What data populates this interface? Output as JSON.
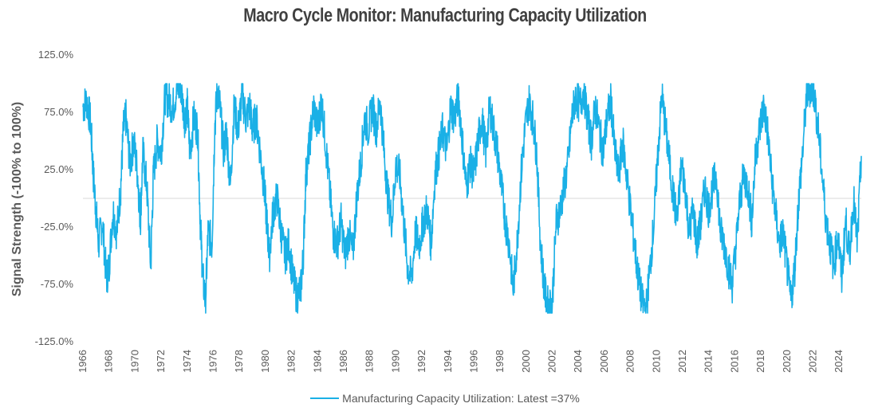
{
  "chart_data": {
    "type": "line",
    "title": "Macro Cycle Monitor: Manufacturing Capacity Utilization",
    "ylabel": "Signal Strength (-100% to 100%)",
    "xlabel": "",
    "ylim": [
      -125,
      125
    ],
    "yticks": [
      "125.0%",
      "75.0%",
      "25.0%",
      "-25.0%",
      "-75.0%",
      "-125.0%"
    ],
    "xlim": [
      1966,
      2025.7
    ],
    "xticks": [
      "1966",
      "1968",
      "1970",
      "1972",
      "1974",
      "1976",
      "1978",
      "1980",
      "1982",
      "1984",
      "1986",
      "1988",
      "1990",
      "1992",
      "1994",
      "1996",
      "1998",
      "2000",
      "2002",
      "2004",
      "2006",
      "2008",
      "2010",
      "2012",
      "2014",
      "2016",
      "2018",
      "2020",
      "2022",
      "2024"
    ],
    "grid": false,
    "legend_position": "bottom",
    "series": [
      {
        "name": "Manufacturing Capacity Utilization: Latest =37%",
        "color": "#1ab0e6",
        "points": [
          [
            1966.0,
            80
          ],
          [
            1966.3,
            85
          ],
          [
            1966.6,
            65
          ],
          [
            1966.8,
            20
          ],
          [
            1967.0,
            -10
          ],
          [
            1967.2,
            -40
          ],
          [
            1967.5,
            -20
          ],
          [
            1967.8,
            -70
          ],
          [
            1968.0,
            -60
          ],
          [
            1968.3,
            -10
          ],
          [
            1968.6,
            -30
          ],
          [
            1968.9,
            10
          ],
          [
            1969.1,
            60
          ],
          [
            1969.3,
            70
          ],
          [
            1969.6,
            30
          ],
          [
            1969.9,
            50
          ],
          [
            1970.2,
            20
          ],
          [
            1970.4,
            -20
          ],
          [
            1970.6,
            40
          ],
          [
            1970.9,
            10
          ],
          [
            1971.2,
            -60
          ],
          [
            1971.4,
            20
          ],
          [
            1971.7,
            50
          ],
          [
            1972.0,
            40
          ],
          [
            1972.3,
            90
          ],
          [
            1972.6,
            85
          ],
          [
            1972.9,
            80
          ],
          [
            1973.2,
            95
          ],
          [
            1973.5,
            97
          ],
          [
            1973.8,
            70
          ],
          [
            1974.0,
            80
          ],
          [
            1974.2,
            40
          ],
          [
            1974.5,
            70
          ],
          [
            1974.8,
            60
          ],
          [
            1975.0,
            -20
          ],
          [
            1975.2,
            -70
          ],
          [
            1975.4,
            -90
          ],
          [
            1975.6,
            -30
          ],
          [
            1975.9,
            -40
          ],
          [
            1976.1,
            60
          ],
          [
            1976.3,
            95
          ],
          [
            1976.5,
            80
          ],
          [
            1976.8,
            40
          ],
          [
            1977.0,
            60
          ],
          [
            1977.3,
            10
          ],
          [
            1977.6,
            80
          ],
          [
            1977.9,
            60
          ],
          [
            1978.2,
            90
          ],
          [
            1978.5,
            70
          ],
          [
            1978.8,
            80
          ],
          [
            1979.0,
            60
          ],
          [
            1979.3,
            70
          ],
          [
            1979.6,
            40
          ],
          [
            1979.9,
            10
          ],
          [
            1980.1,
            -20
          ],
          [
            1980.3,
            -50
          ],
          [
            1980.6,
            -10
          ],
          [
            1980.9,
            0
          ],
          [
            1981.2,
            -30
          ],
          [
            1981.5,
            -50
          ],
          [
            1981.8,
            -40
          ],
          [
            1982.1,
            -70
          ],
          [
            1982.4,
            -85
          ],
          [
            1982.7,
            -80
          ],
          [
            1982.9,
            -50
          ],
          [
            1983.1,
            20
          ],
          [
            1983.4,
            50
          ],
          [
            1983.7,
            80
          ],
          [
            1984.0,
            60
          ],
          [
            1984.3,
            85
          ],
          [
            1984.6,
            50
          ],
          [
            1984.9,
            10
          ],
          [
            1985.2,
            -30
          ],
          [
            1985.5,
            -40
          ],
          [
            1985.8,
            -20
          ],
          [
            1986.1,
            -50
          ],
          [
            1986.4,
            -30
          ],
          [
            1986.7,
            -50
          ],
          [
            1987.0,
            0
          ],
          [
            1987.3,
            30
          ],
          [
            1987.6,
            70
          ],
          [
            1987.9,
            60
          ],
          [
            1988.2,
            80
          ],
          [
            1988.5,
            60
          ],
          [
            1988.8,
            85
          ],
          [
            1989.1,
            40
          ],
          [
            1989.4,
            0
          ],
          [
            1989.7,
            -20
          ],
          [
            1990.0,
            30
          ],
          [
            1990.3,
            20
          ],
          [
            1990.6,
            -20
          ],
          [
            1990.9,
            -60
          ],
          [
            1991.2,
            -70
          ],
          [
            1991.5,
            -30
          ],
          [
            1991.8,
            -40
          ],
          [
            1992.1,
            -20
          ],
          [
            1992.4,
            -10
          ],
          [
            1992.7,
            -40
          ],
          [
            1993.0,
            20
          ],
          [
            1993.3,
            40
          ],
          [
            1993.6,
            60
          ],
          [
            1993.9,
            40
          ],
          [
            1994.2,
            80
          ],
          [
            1994.5,
            70
          ],
          [
            1994.8,
            90
          ],
          [
            1995.1,
            50
          ],
          [
            1995.4,
            10
          ],
          [
            1995.7,
            30
          ],
          [
            1996.0,
            20
          ],
          [
            1996.3,
            50
          ],
          [
            1996.6,
            70
          ],
          [
            1996.9,
            40
          ],
          [
            1997.2,
            80
          ],
          [
            1997.5,
            60
          ],
          [
            1997.8,
            40
          ],
          [
            1998.1,
            10
          ],
          [
            1998.4,
            -20
          ],
          [
            1998.7,
            -40
          ],
          [
            1999.0,
            -80
          ],
          [
            1999.3,
            -40
          ],
          [
            1999.6,
            20
          ],
          [
            1999.9,
            60
          ],
          [
            2000.2,
            85
          ],
          [
            2000.5,
            70
          ],
          [
            2000.8,
            40
          ],
          [
            2001.1,
            -40
          ],
          [
            2001.4,
            -80
          ],
          [
            2001.7,
            -95
          ],
          [
            2002.0,
            -90
          ],
          [
            2002.3,
            -20
          ],
          [
            2002.6,
            -10
          ],
          [
            2002.9,
            10
          ],
          [
            2003.2,
            30
          ],
          [
            2003.5,
            70
          ],
          [
            2003.8,
            90
          ],
          [
            2004.1,
            80
          ],
          [
            2004.4,
            95
          ],
          [
            2004.7,
            70
          ],
          [
            2005.0,
            50
          ],
          [
            2005.3,
            80
          ],
          [
            2005.6,
            60
          ],
          [
            2005.9,
            40
          ],
          [
            2006.2,
            70
          ],
          [
            2006.5,
            85
          ],
          [
            2006.8,
            40
          ],
          [
            2007.1,
            20
          ],
          [
            2007.4,
            50
          ],
          [
            2007.7,
            20
          ],
          [
            2008.0,
            -10
          ],
          [
            2008.3,
            -40
          ],
          [
            2008.6,
            -70
          ],
          [
            2008.9,
            -90
          ],
          [
            2009.2,
            -97
          ],
          [
            2009.5,
            -60
          ],
          [
            2009.8,
            -20
          ],
          [
            2010.1,
            40
          ],
          [
            2010.4,
            90
          ],
          [
            2010.7,
            60
          ],
          [
            2011.0,
            30
          ],
          [
            2011.3,
            0
          ],
          [
            2011.6,
            -20
          ],
          [
            2011.9,
            30
          ],
          [
            2012.2,
            10
          ],
          [
            2012.5,
            -30
          ],
          [
            2012.8,
            -10
          ],
          [
            2013.1,
            -40
          ],
          [
            2013.4,
            -20
          ],
          [
            2013.7,
            10
          ],
          [
            2014.0,
            -10
          ],
          [
            2014.3,
            10
          ],
          [
            2014.6,
            20
          ],
          [
            2014.9,
            -30
          ],
          [
            2015.2,
            -40
          ],
          [
            2015.5,
            -60
          ],
          [
            2015.8,
            -75
          ],
          [
            2016.1,
            -40
          ],
          [
            2016.4,
            0
          ],
          [
            2016.7,
            20
          ],
          [
            2017.0,
            10
          ],
          [
            2017.3,
            -20
          ],
          [
            2017.6,
            40
          ],
          [
            2017.9,
            60
          ],
          [
            2018.2,
            80
          ],
          [
            2018.5,
            60
          ],
          [
            2018.8,
            20
          ],
          [
            2019.1,
            -10
          ],
          [
            2019.4,
            -40
          ],
          [
            2019.7,
            -30
          ],
          [
            2020.0,
            -60
          ],
          [
            2020.3,
            -90
          ],
          [
            2020.6,
            -60
          ],
          [
            2020.9,
            0
          ],
          [
            2021.2,
            40
          ],
          [
            2021.5,
            90
          ],
          [
            2021.8,
            97
          ],
          [
            2022.1,
            90
          ],
          [
            2022.4,
            60
          ],
          [
            2022.7,
            20
          ],
          [
            2023.0,
            -20
          ],
          [
            2023.3,
            -40
          ],
          [
            2023.6,
            -60
          ],
          [
            2023.9,
            -30
          ],
          [
            2024.2,
            -70
          ],
          [
            2024.5,
            -20
          ],
          [
            2024.8,
            -50
          ],
          [
            2025.1,
            0
          ],
          [
            2025.4,
            -40
          ],
          [
            2025.7,
            37
          ]
        ]
      }
    ]
  }
}
